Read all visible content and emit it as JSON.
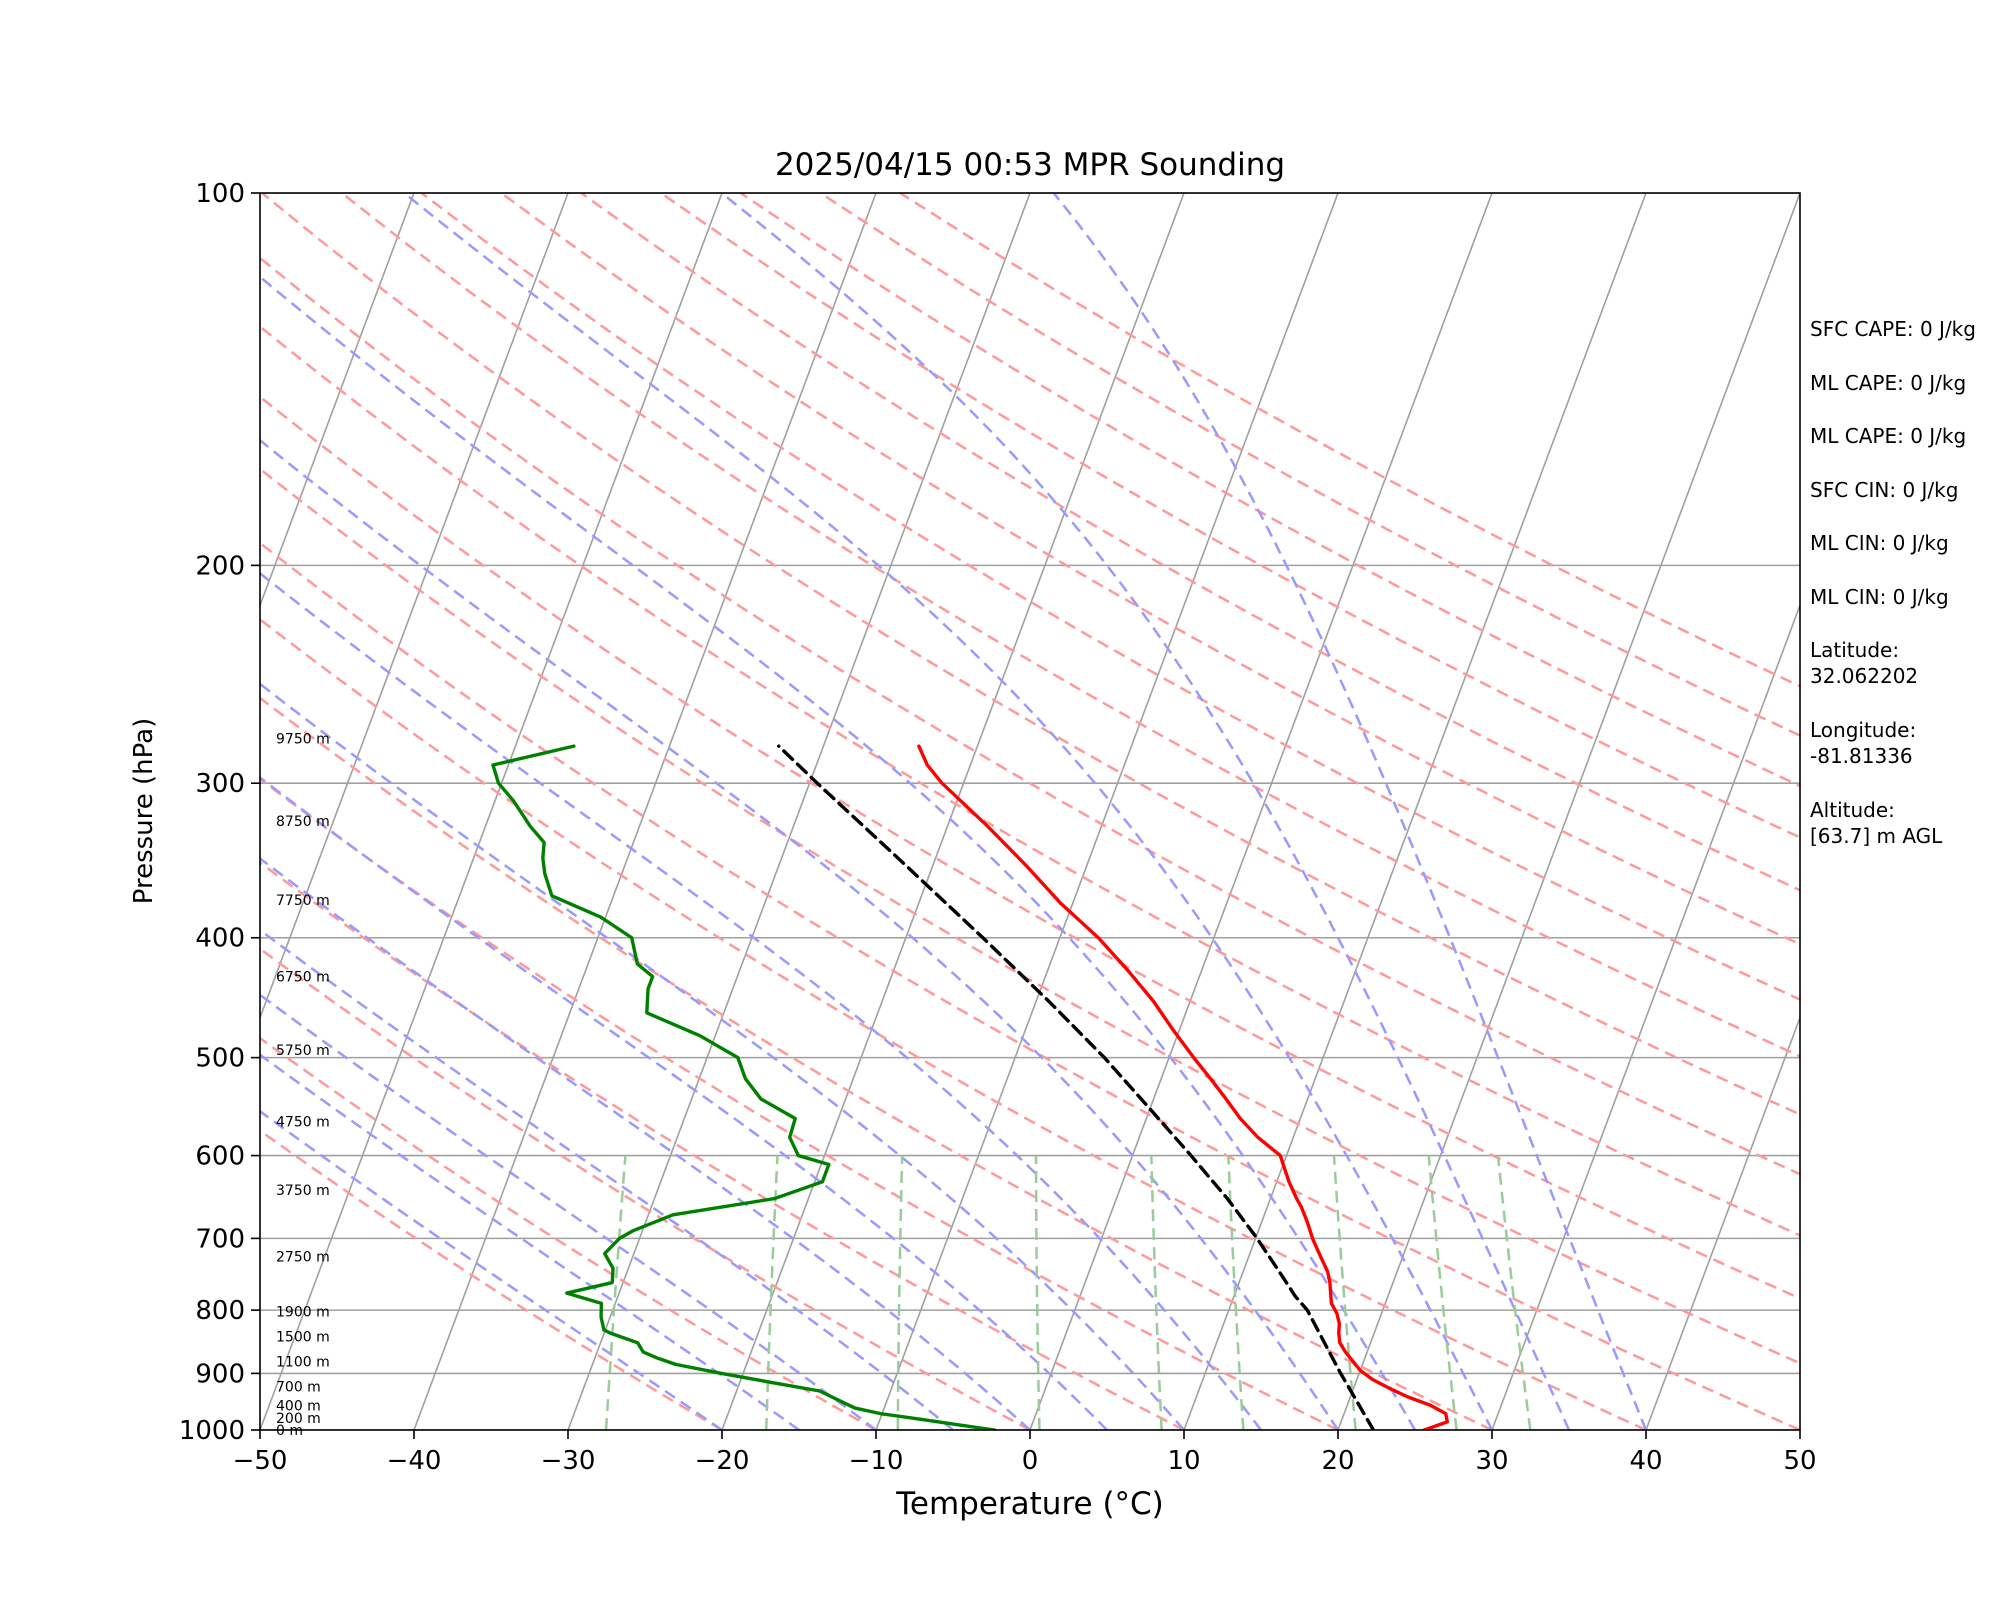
{
  "chart_data": {
    "type": "line",
    "title": "2025/04/15 00:53 MPR Sounding",
    "xlabel": "Temperature (°C)",
    "ylabel": "Pressure (hPa)",
    "xlim": [
      -50,
      50
    ],
    "ylim": [
      1000,
      100
    ],
    "y_scale": "log",
    "x_ticks": [
      -50,
      -40,
      -30,
      -20,
      -10,
      0,
      10,
      20,
      30,
      40,
      50
    ],
    "x_tick_labels": [
      "−50",
      "−40",
      "−30",
      "−20",
      "−10",
      "0",
      "10",
      "20",
      "30",
      "40",
      "50"
    ],
    "y_ticks": [
      1000,
      900,
      800,
      700,
      600,
      500,
      400,
      300,
      200,
      100
    ],
    "y_tick_labels": [
      "1000",
      "900",
      "800",
      "700",
      "600",
      "500",
      "400",
      "300",
      "200",
      "100"
    ],
    "grid": true,
    "series": [
      {
        "role": "temperature",
        "color": "#ff0000",
        "points": [
          [
            1000,
            25.6
          ],
          [
            985,
            26.9
          ],
          [
            970,
            26.6
          ],
          [
            955,
            25.4
          ],
          [
            940,
            23.7
          ],
          [
            925,
            22.3
          ],
          [
            910,
            21.0
          ],
          [
            895,
            20.0
          ],
          [
            880,
            19.3
          ],
          [
            865,
            18.6
          ],
          [
            850,
            18.0
          ],
          [
            835,
            17.7
          ],
          [
            820,
            17.5
          ],
          [
            805,
            17.1
          ],
          [
            790,
            16.5
          ],
          [
            775,
            16.2
          ],
          [
            760,
            15.9
          ],
          [
            745,
            15.5
          ],
          [
            730,
            14.9
          ],
          [
            715,
            14.3
          ],
          [
            700,
            13.7
          ],
          [
            680,
            13.0
          ],
          [
            660,
            12.2
          ],
          [
            650,
            11.7
          ],
          [
            630,
            10.8
          ],
          [
            610,
            10.0
          ],
          [
            600,
            9.6
          ],
          [
            580,
            7.7
          ],
          [
            560,
            6.1
          ],
          [
            540,
            4.7
          ],
          [
            520,
            3.2
          ],
          [
            500,
            1.6
          ],
          [
            475,
            -0.4
          ],
          [
            450,
            -2.4
          ],
          [
            425,
            -4.8
          ],
          [
            400,
            -7.5
          ],
          [
            375,
            -10.8
          ],
          [
            350,
            -13.9
          ],
          [
            325,
            -17.4
          ],
          [
            300,
            -21.4
          ],
          [
            290,
            -22.8
          ],
          [
            280,
            -23.8
          ]
        ]
      },
      {
        "role": "dewpoint",
        "color": "#008000",
        "points": [
          [
            1000,
            -2.3
          ],
          [
            990,
            -4.9
          ],
          [
            980,
            -7.4
          ],
          [
            970,
            -10.1
          ],
          [
            960,
            -11.9
          ],
          [
            950,
            -12.8
          ],
          [
            940,
            -13.7
          ],
          [
            930,
            -14.6
          ],
          [
            915,
            -18.0
          ],
          [
            900,
            -21.4
          ],
          [
            885,
            -24.6
          ],
          [
            875,
            -25.9
          ],
          [
            865,
            -27.0
          ],
          [
            850,
            -27.6
          ],
          [
            835,
            -29.6
          ],
          [
            830,
            -30.1
          ],
          [
            810,
            -30.6
          ],
          [
            790,
            -30.9
          ],
          [
            775,
            -33.4
          ],
          [
            760,
            -30.7
          ],
          [
            740,
            -31.0
          ],
          [
            720,
            -31.9
          ],
          [
            700,
            -31.3
          ],
          [
            690,
            -30.6
          ],
          [
            670,
            -28.4
          ],
          [
            650,
            -22.2
          ],
          [
            630,
            -19.5
          ],
          [
            610,
            -19.5
          ],
          [
            600,
            -21.7
          ],
          [
            580,
            -22.7
          ],
          [
            560,
            -22.8
          ],
          [
            540,
            -25.5
          ],
          [
            520,
            -27.0
          ],
          [
            500,
            -28.0
          ],
          [
            480,
            -31.0
          ],
          [
            460,
            -35.0
          ],
          [
            440,
            -35.5
          ],
          [
            430,
            -35.5
          ],
          [
            420,
            -36.8
          ],
          [
            400,
            -37.8
          ],
          [
            385,
            -40.3
          ],
          [
            370,
            -44.0
          ],
          [
            355,
            -45.0
          ],
          [
            345,
            -45.5
          ],
          [
            335,
            -45.8
          ],
          [
            325,
            -47.1
          ],
          [
            310,
            -48.8
          ],
          [
            300,
            -50.2
          ],
          [
            290,
            -51.0
          ],
          [
            280,
            -46.2
          ]
        ]
      },
      {
        "role": "parcel",
        "color": "#000000",
        "style": "dashed",
        "points": [
          [
            1000,
            22.3
          ],
          [
            950,
            20.6
          ],
          [
            900,
            18.8
          ],
          [
            850,
            17.0
          ],
          [
            800,
            15.1
          ],
          [
            780,
            14.0
          ],
          [
            750,
            12.6
          ],
          [
            700,
            10.1
          ],
          [
            650,
            7.2
          ],
          [
            600,
            3.8
          ],
          [
            550,
            0.0
          ],
          [
            500,
            -4.2
          ],
          [
            450,
            -9.2
          ],
          [
            400,
            -15.0
          ],
          [
            350,
            -21.7
          ],
          [
            300,
            -29.5
          ],
          [
            280,
            -32.9
          ]
        ]
      }
    ],
    "height_labels": [
      {
        "label": "0 m",
        "p": 1000
      },
      {
        "label": "200 m",
        "p": 978
      },
      {
        "label": "400 m",
        "p": 955
      },
      {
        "label": "700 m",
        "p": 922
      },
      {
        "label": "1100 m",
        "p": 880
      },
      {
        "label": "1500 m",
        "p": 840
      },
      {
        "label": "1900 m",
        "p": 802
      },
      {
        "label": "2750 m",
        "p": 724
      },
      {
        "label": "3750 m",
        "p": 640
      },
      {
        "label": "4750 m",
        "p": 563
      },
      {
        "label": "5750 m",
        "p": 493
      },
      {
        "label": "6750 m",
        "p": 430
      },
      {
        "label": "7750 m",
        "p": 373
      },
      {
        "label": "8750 m",
        "p": 322
      },
      {
        "label": "9750 m",
        "p": 276
      }
    ],
    "reference_lines": {
      "dry_adiabats_theta_K": [
        -20,
        -10,
        0,
        10,
        20,
        30,
        40,
        50,
        60,
        70,
        80,
        90,
        100,
        110,
        120,
        130,
        140,
        150,
        160,
        170,
        180
      ],
      "moist_adiabats_start_C": [
        -20,
        -15,
        -10,
        -5,
        0,
        5,
        10,
        15,
        20,
        25,
        30,
        35,
        40
      ],
      "mixing_ratio_lines_gkg": [
        0.4,
        1,
        2,
        4,
        7,
        10,
        16,
        24,
        32
      ],
      "isotherm_spacing_C": 10,
      "skew": 30
    },
    "colors": {
      "dry_adiabat": "#ff9999",
      "moist_adiabat": "#9999ff",
      "mixing_ratio": "#99cc99",
      "isotherm": "#a0a0a0",
      "isobar": "#a0a0a0"
    }
  },
  "info": {
    "sfc_cape": "SFC CAPE: 0 J/kg",
    "ml_cape_1": "ML CAPE: 0 J/kg",
    "ml_cape_2": "ML CAPE: 0 J/kg",
    "sfc_cin": "SFC CIN: 0 J/kg",
    "ml_cin_1": "ML CIN: 0 J/kg",
    "ml_cin_2": "ML CIN: 0 J/kg",
    "latitude_label": "Latitude:",
    "latitude_value": "32.062202",
    "longitude_label": "Longitude:",
    "longitude_value": "-81.81336",
    "altitude_label": "Altitude:",
    "altitude_value": "[63.7] m AGL"
  }
}
